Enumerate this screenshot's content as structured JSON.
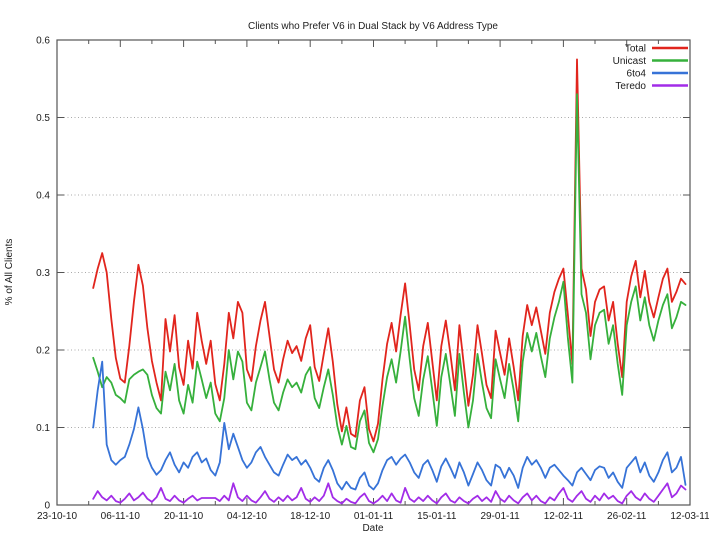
{
  "chart_data": {
    "type": "line",
    "title": "Clients who Prefer V6 in Dual Stack by V6 Address Type",
    "xlabel": "Date",
    "ylabel": "% of All Clients",
    "ylim": [
      0,
      0.6
    ],
    "yticks": [
      {
        "value": 0.0,
        "label": "0"
      },
      {
        "value": 0.1,
        "label": "0.1"
      },
      {
        "value": 0.2,
        "label": "0.2"
      },
      {
        "value": 0.3,
        "label": "0.3"
      },
      {
        "value": 0.4,
        "label": "0.4"
      },
      {
        "value": 0.5,
        "label": "0.5"
      },
      {
        "value": 0.6,
        "label": "0.6"
      }
    ],
    "xticks": [
      "23-10-10",
      "06-11-10",
      "20-11-10",
      "04-12-10",
      "18-12-10",
      "01-01-11",
      "15-01-11",
      "29-01-11",
      "12-02-11",
      "26-02-11",
      "12-03-11"
    ],
    "xtick_interval_days": 14,
    "x_total_days": 140,
    "series_start_day": 8,
    "grid": "horizontal-dotted",
    "legend_position": "top-right-inside",
    "axis_color": "#555555",
    "grid_color": "#aaaaaa",
    "series": [
      {
        "name": "Total",
        "color": "#e1251d",
        "values": [
          0.28,
          0.305,
          0.325,
          0.3,
          0.24,
          0.19,
          0.163,
          0.158,
          0.205,
          0.262,
          0.31,
          0.283,
          0.228,
          0.186,
          0.158,
          0.135,
          0.24,
          0.198,
          0.245,
          0.178,
          0.155,
          0.212,
          0.176,
          0.248,
          0.212,
          0.182,
          0.212,
          0.156,
          0.135,
          0.182,
          0.248,
          0.215,
          0.262,
          0.248,
          0.175,
          0.16,
          0.205,
          0.238,
          0.262,
          0.218,
          0.175,
          0.158,
          0.188,
          0.212,
          0.196,
          0.205,
          0.186,
          0.215,
          0.232,
          0.178,
          0.16,
          0.195,
          0.228,
          0.185,
          0.13,
          0.095,
          0.126,
          0.092,
          0.088,
          0.135,
          0.152,
          0.098,
          0.082,
          0.105,
          0.162,
          0.208,
          0.235,
          0.198,
          0.245,
          0.286,
          0.232,
          0.175,
          0.148,
          0.205,
          0.235,
          0.185,
          0.135,
          0.205,
          0.238,
          0.195,
          0.148,
          0.232,
          0.18,
          0.128,
          0.168,
          0.232,
          0.195,
          0.155,
          0.138,
          0.225,
          0.196,
          0.168,
          0.215,
          0.178,
          0.135,
          0.218,
          0.258,
          0.232,
          0.255,
          0.225,
          0.195,
          0.248,
          0.275,
          0.292,
          0.305,
          0.245,
          0.182,
          0.575,
          0.305,
          0.278,
          0.218,
          0.262,
          0.278,
          0.282,
          0.238,
          0.262,
          0.208,
          0.165,
          0.262,
          0.295,
          0.315,
          0.268,
          0.302,
          0.262,
          0.242,
          0.268,
          0.292,
          0.305,
          0.262,
          0.275,
          0.292,
          0.285
        ]
      },
      {
        "name": "Unicast",
        "color": "#36b03c",
        "values": [
          0.19,
          0.172,
          0.152,
          0.165,
          0.158,
          0.142,
          0.138,
          0.132,
          0.162,
          0.168,
          0.172,
          0.175,
          0.168,
          0.142,
          0.125,
          0.118,
          0.172,
          0.148,
          0.182,
          0.135,
          0.118,
          0.155,
          0.132,
          0.185,
          0.162,
          0.138,
          0.158,
          0.118,
          0.108,
          0.138,
          0.2,
          0.162,
          0.198,
          0.185,
          0.132,
          0.122,
          0.158,
          0.178,
          0.198,
          0.162,
          0.132,
          0.122,
          0.145,
          0.162,
          0.152,
          0.158,
          0.145,
          0.168,
          0.178,
          0.138,
          0.125,
          0.152,
          0.175,
          0.142,
          0.102,
          0.078,
          0.102,
          0.075,
          0.072,
          0.108,
          0.122,
          0.08,
          0.068,
          0.085,
          0.128,
          0.165,
          0.188,
          0.158,
          0.198,
          0.243,
          0.188,
          0.138,
          0.115,
          0.162,
          0.192,
          0.148,
          0.102,
          0.165,
          0.195,
          0.155,
          0.115,
          0.195,
          0.145,
          0.1,
          0.135,
          0.195,
          0.158,
          0.125,
          0.112,
          0.188,
          0.162,
          0.138,
          0.182,
          0.148,
          0.108,
          0.185,
          0.222,
          0.198,
          0.222,
          0.192,
          0.165,
          0.215,
          0.242,
          0.262,
          0.288,
          0.215,
          0.158,
          0.53,
          0.272,
          0.248,
          0.188,
          0.232,
          0.248,
          0.252,
          0.208,
          0.232,
          0.182,
          0.142,
          0.232,
          0.262,
          0.282,
          0.238,
          0.268,
          0.232,
          0.212,
          0.238,
          0.258,
          0.272,
          0.228,
          0.242,
          0.262,
          0.258
        ]
      },
      {
        "name": "6to4",
        "color": "#3773d7",
        "values": [
          0.1,
          0.148,
          0.185,
          0.078,
          0.058,
          0.052,
          0.058,
          0.062,
          0.078,
          0.098,
          0.126,
          0.098,
          0.062,
          0.048,
          0.039,
          0.045,
          0.058,
          0.068,
          0.052,
          0.042,
          0.055,
          0.048,
          0.062,
          0.068,
          0.055,
          0.06,
          0.045,
          0.038,
          0.055,
          0.106,
          0.072,
          0.092,
          0.075,
          0.058,
          0.048,
          0.055,
          0.068,
          0.075,
          0.062,
          0.052,
          0.042,
          0.038,
          0.052,
          0.065,
          0.058,
          0.062,
          0.052,
          0.058,
          0.048,
          0.035,
          0.03,
          0.048,
          0.058,
          0.045,
          0.028,
          0.02,
          0.03,
          0.022,
          0.02,
          0.035,
          0.042,
          0.025,
          0.02,
          0.028,
          0.045,
          0.058,
          0.062,
          0.052,
          0.06,
          0.065,
          0.055,
          0.042,
          0.035,
          0.052,
          0.058,
          0.045,
          0.03,
          0.05,
          0.06,
          0.048,
          0.035,
          0.055,
          0.042,
          0.025,
          0.04,
          0.055,
          0.045,
          0.032,
          0.025,
          0.052,
          0.048,
          0.035,
          0.048,
          0.038,
          0.022,
          0.048,
          0.062,
          0.052,
          0.058,
          0.048,
          0.035,
          0.048,
          0.052,
          0.045,
          0.038,
          0.032,
          0.025,
          0.042,
          0.048,
          0.04,
          0.032,
          0.045,
          0.05,
          0.048,
          0.035,
          0.042,
          0.03,
          0.022,
          0.048,
          0.055,
          0.062,
          0.042,
          0.055,
          0.038,
          0.03,
          0.042,
          0.058,
          0.068,
          0.042,
          0.048,
          0.062,
          0.026
        ]
      },
      {
        "name": "Teredo",
        "color": "#a22ce8",
        "values": [
          0.008,
          0.018,
          0.01,
          0.006,
          0.012,
          0.005,
          0.003,
          0.008,
          0.015,
          0.006,
          0.01,
          0.016,
          0.008,
          0.004,
          0.01,
          0.022,
          0.008,
          0.005,
          0.012,
          0.006,
          0.003,
          0.008,
          0.012,
          0.006,
          0.009,
          0.009,
          0.009,
          0.009,
          0.005,
          0.012,
          0.006,
          0.028,
          0.01,
          0.005,
          0.012,
          0.006,
          0.003,
          0.01,
          0.018,
          0.008,
          0.004,
          0.01,
          0.005,
          0.012,
          0.006,
          0.01,
          0.022,
          0.008,
          0.004,
          0.01,
          0.005,
          0.012,
          0.028,
          0.01,
          0.005,
          0.002,
          0.008,
          0.004,
          0.002,
          0.01,
          0.015,
          0.005,
          0.002,
          0.006,
          0.012,
          0.005,
          0.015,
          0.006,
          0.003,
          0.022,
          0.008,
          0.004,
          0.01,
          0.005,
          0.012,
          0.006,
          0.002,
          0.01,
          0.015,
          0.006,
          0.003,
          0.01,
          0.005,
          0.002,
          0.008,
          0.012,
          0.005,
          0.01,
          0.004,
          0.018,
          0.008,
          0.004,
          0.012,
          0.006,
          0.002,
          0.01,
          0.015,
          0.006,
          0.012,
          0.005,
          0.002,
          0.01,
          0.006,
          0.015,
          0.022,
          0.008,
          0.004,
          0.012,
          0.018,
          0.008,
          0.004,
          0.012,
          0.006,
          0.015,
          0.008,
          0.012,
          0.005,
          0.002,
          0.012,
          0.018,
          0.01,
          0.006,
          0.015,
          0.008,
          0.004,
          0.012,
          0.02,
          0.028,
          0.01,
          0.015,
          0.025,
          0.02
        ]
      }
    ]
  }
}
